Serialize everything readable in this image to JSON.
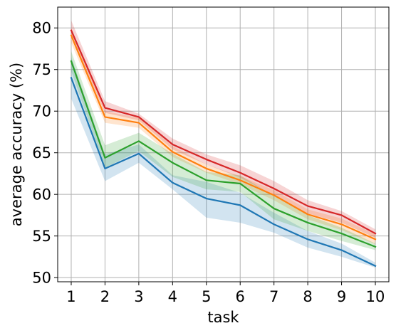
{
  "chart_data": {
    "type": "line",
    "title": "",
    "xlabel": "task",
    "ylabel": "average accuracy (%)",
    "x": [
      1,
      2,
      3,
      4,
      5,
      6,
      7,
      8,
      9,
      10
    ],
    "xlim": [
      0.6,
      10.4
    ],
    "ylim": [
      49.5,
      82.5
    ],
    "x_ticks": [
      "1",
      "2",
      "3",
      "4",
      "5",
      "6",
      "7",
      "8",
      "9",
      "10"
    ],
    "y_ticks": [
      50,
      55,
      60,
      65,
      70,
      75,
      80
    ],
    "grid": true,
    "legend": "none",
    "series": [
      {
        "color": "#1f77b4",
        "values": [
          74.0,
          63.1,
          64.9,
          61.4,
          59.5,
          58.7,
          56.4,
          54.6,
          53.3,
          51.4
        ],
        "lower": [
          71.5,
          61.6,
          63.8,
          60.6,
          57.2,
          56.6,
          55.4,
          53.6,
          52.5,
          51.2
        ],
        "upper": [
          76.5,
          64.8,
          66.0,
          62.3,
          61.5,
          60.2,
          57.8,
          55.6,
          54.1,
          51.8
        ]
      },
      {
        "color": "#ff7f0e",
        "values": [
          79.1,
          69.3,
          68.6,
          65.1,
          63.1,
          61.7,
          59.9,
          57.6,
          56.4,
          54.6
        ],
        "lower": [
          78.2,
          68.6,
          68.0,
          64.5,
          62.6,
          61.2,
          59.3,
          57.0,
          55.7,
          54.0
        ],
        "upper": [
          80.0,
          70.0,
          69.2,
          65.8,
          63.6,
          62.2,
          60.5,
          58.2,
          57.1,
          55.2
        ]
      },
      {
        "color": "#2ca02c",
        "values": [
          76.0,
          64.4,
          66.4,
          63.8,
          61.7,
          61.3,
          58.3,
          56.6,
          55.3,
          53.7
        ],
        "lower": [
          74.8,
          63.2,
          65.2,
          62.1,
          60.6,
          60.3,
          57.0,
          55.6,
          54.4,
          53.3
        ],
        "upper": [
          77.2,
          65.9,
          67.4,
          64.9,
          62.7,
          62.3,
          59.8,
          57.5,
          56.0,
          54.1
        ]
      },
      {
        "color": "#d62728",
        "values": [
          79.7,
          70.4,
          69.3,
          66.0,
          64.2,
          62.6,
          60.7,
          58.6,
          57.5,
          55.3
        ],
        "lower": [
          78.9,
          69.8,
          68.9,
          65.4,
          63.6,
          62.0,
          59.9,
          57.7,
          56.6,
          54.8
        ],
        "upper": [
          80.9,
          71.2,
          69.7,
          66.7,
          64.8,
          63.5,
          61.6,
          59.3,
          58.0,
          55.8
        ]
      }
    ]
  }
}
